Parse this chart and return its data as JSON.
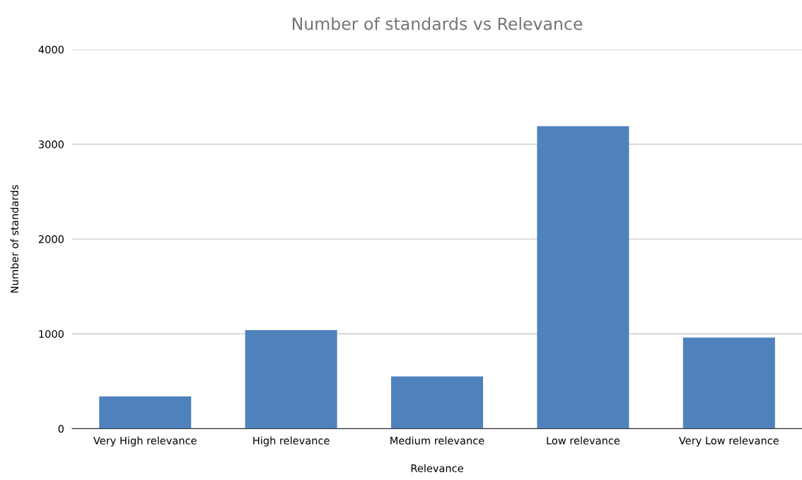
{
  "chart_data": {
    "type": "bar",
    "title": "Number of standards vs Relevance",
    "xlabel": "Relevance",
    "ylabel": "Number of standards",
    "categories": [
      "Very High relevance",
      "High relevance",
      "Medium relevance",
      "Low relevance",
      "Very Low relevance"
    ],
    "values": [
      340,
      1040,
      550,
      3190,
      960
    ],
    "color": "#4f81bd",
    "ylim": [
      0,
      4000
    ],
    "yticks": [
      0,
      1000,
      2000,
      3000,
      4000
    ],
    "grid": "y",
    "legend": false
  }
}
